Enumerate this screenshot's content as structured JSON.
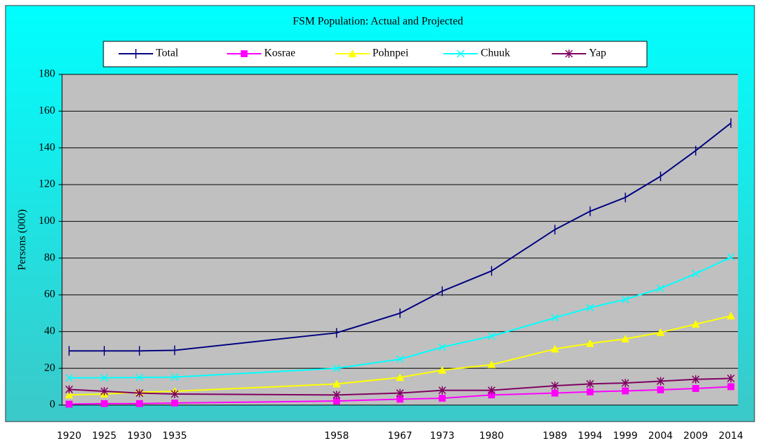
{
  "chart_data": {
    "type": "line",
    "title": "FSM Population: Actual and Projected",
    "y_label": "Persons (000)",
    "x": [
      1920,
      1925,
      1930,
      1935,
      1958,
      1967,
      1973,
      1980,
      1989,
      1994,
      1999,
      2004,
      2009,
      2014
    ],
    "xlim": [
      1919,
      2015
    ],
    "xticks": [
      1920,
      1925,
      1930,
      1935,
      1958,
      1967,
      1973,
      1980,
      1989,
      1994,
      1999,
      2004,
      2009,
      2014
    ],
    "ylim": [
      0,
      180
    ],
    "yticks": [
      0,
      20,
      40,
      60,
      80,
      100,
      120,
      140,
      160,
      180
    ],
    "grid": true,
    "legend": "top",
    "series": [
      {
        "name": "Total",
        "color": "#000080",
        "marker": "tick",
        "values": [
          29.5,
          29.5,
          29.5,
          29.8,
          39.3,
          50,
          62,
          73,
          95.5,
          105.5,
          113,
          124.5,
          138.5,
          153.5
        ]
      },
      {
        "name": "Kosrae",
        "color": "#ff00ff",
        "marker": "square",
        "values": [
          0.5,
          0.8,
          0.8,
          1.1,
          2.2,
          3.2,
          3.7,
          5.5,
          6.5,
          7.2,
          7.7,
          8.3,
          9,
          10
        ]
      },
      {
        "name": "Pohnpei",
        "color": "#ffff00",
        "marker": "triangle",
        "values": [
          5.5,
          6,
          7,
          7.5,
          11.5,
          15,
          19,
          22,
          30.5,
          33.5,
          36,
          39.5,
          44,
          48.5
        ]
      },
      {
        "name": "Chuuk",
        "color": "#00ffff",
        "marker": "x",
        "values": [
          14.8,
          14.8,
          15,
          15.2,
          20,
          25,
          31.5,
          37.5,
          47.5,
          53,
          57.5,
          63.5,
          71.5,
          80.5
        ]
      },
      {
        "name": "Yap",
        "color": "#800060",
        "marker": "star",
        "values": [
          8.5,
          7.5,
          6.5,
          6,
          5.5,
          6.5,
          8,
          8,
          10.5,
          11.5,
          12,
          13,
          14,
          14.5
        ]
      }
    ]
  }
}
